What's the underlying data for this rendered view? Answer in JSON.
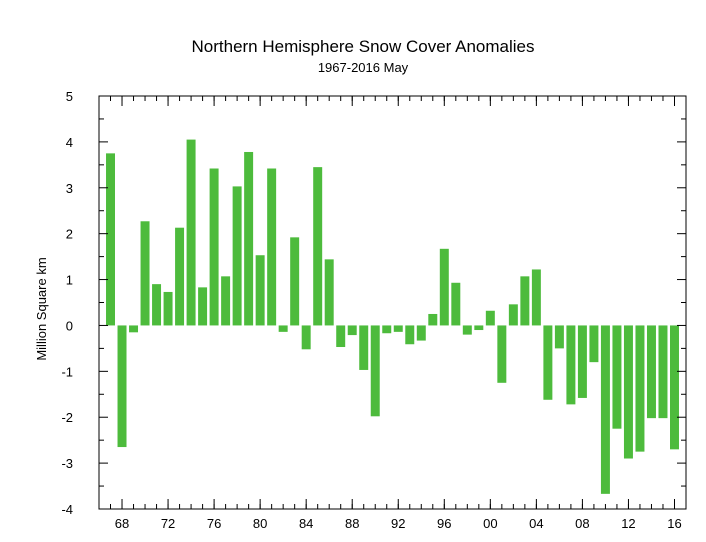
{
  "chart_data": {
    "type": "bar",
    "title": "Northern Hemisphere Snow Cover Anomalies",
    "subtitle": "1967-2016 May",
    "ylabel": "Million Square km",
    "xlabel": "",
    "ylim": [
      -4,
      5
    ],
    "xlim": [
      1966,
      2017
    ],
    "bar_color": "#4dbb3c",
    "y_ticks": [
      -4,
      -3,
      -2,
      -1,
      0,
      1,
      2,
      3,
      4,
      5
    ],
    "y_tick_labels": [
      "-4",
      "-3",
      "-2",
      "-1",
      "0",
      "1",
      "2",
      "3",
      "4",
      "5"
    ],
    "x_ticks": [
      1968,
      1972,
      1976,
      1980,
      1984,
      1988,
      1992,
      1996,
      2000,
      2004,
      2008,
      2012,
      2016
    ],
    "x_tick_labels": [
      "68",
      "72",
      "76",
      "80",
      "84",
      "88",
      "92",
      "96",
      "00",
      "04",
      "08",
      "12",
      "16"
    ],
    "years": [
      1967,
      1968,
      1969,
      1970,
      1971,
      1972,
      1973,
      1974,
      1975,
      1976,
      1977,
      1978,
      1979,
      1980,
      1981,
      1982,
      1983,
      1984,
      1985,
      1986,
      1987,
      1988,
      1989,
      1990,
      1991,
      1992,
      1993,
      1994,
      1995,
      1996,
      1997,
      1998,
      1999,
      2000,
      2001,
      2002,
      2003,
      2004,
      2005,
      2006,
      2007,
      2008,
      2009,
      2010,
      2011,
      2012,
      2013,
      2014,
      2015,
      2016
    ],
    "values": [
      3.75,
      -2.65,
      -0.15,
      2.27,
      0.9,
      0.73,
      2.13,
      4.05,
      0.83,
      3.42,
      1.07,
      3.03,
      3.78,
      1.53,
      3.42,
      -0.14,
      1.92,
      -0.52,
      3.45,
      1.44,
      -0.47,
      -0.21,
      -0.97,
      -1.98,
      -0.17,
      -0.14,
      -0.41,
      -0.33,
      0.25,
      1.67,
      0.93,
      -0.2,
      -0.1,
      0.32,
      -1.25,
      0.46,
      1.07,
      1.22,
      -1.62,
      -0.5,
      -1.72,
      -1.58,
      -0.8,
      -3.67,
      -2.25,
      -2.9,
      -2.75,
      -2.02,
      -2.02,
      -2.7
    ]
  }
}
